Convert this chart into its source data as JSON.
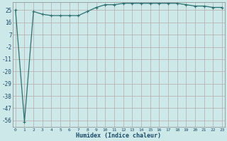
{
  "x": [
    0,
    1,
    2,
    3,
    4,
    5,
    6,
    7,
    8,
    9,
    10,
    11,
    12,
    13,
    14,
    15,
    16,
    17,
    18,
    19,
    20,
    21,
    22,
    23
  ],
  "y": [
    25,
    -57,
    24,
    22,
    21,
    21,
    21,
    21,
    24,
    27,
    29,
    29,
    30,
    30,
    30,
    30,
    30,
    30,
    30,
    29,
    28,
    28,
    27,
    27
  ],
  "line_color": "#2d7070",
  "marker": "+",
  "marker_color": "#2d7070",
  "bg_color": "#cce8e8",
  "grid_color": "#b8a8a8",
  "xlabel": "Humidex (Indice chaleur)",
  "xlabel_color": "#1a4a6a",
  "yticks": [
    25,
    16,
    7,
    -2,
    -11,
    -20,
    -29,
    -38,
    -47,
    -56
  ],
  "xtick_labels": [
    "0",
    "1",
    "2",
    "3",
    "4",
    "5",
    "6",
    "7",
    "8",
    "9",
    "1011",
    "1213",
    "1415",
    "1617",
    "1819",
    "2021",
    "2223"
  ],
  "ylim": [
    -61,
    31
  ],
  "xlim": [
    -0.3,
    23.3
  ],
  "fig_width": 3.2,
  "fig_height": 2.0,
  "dpi": 100
}
